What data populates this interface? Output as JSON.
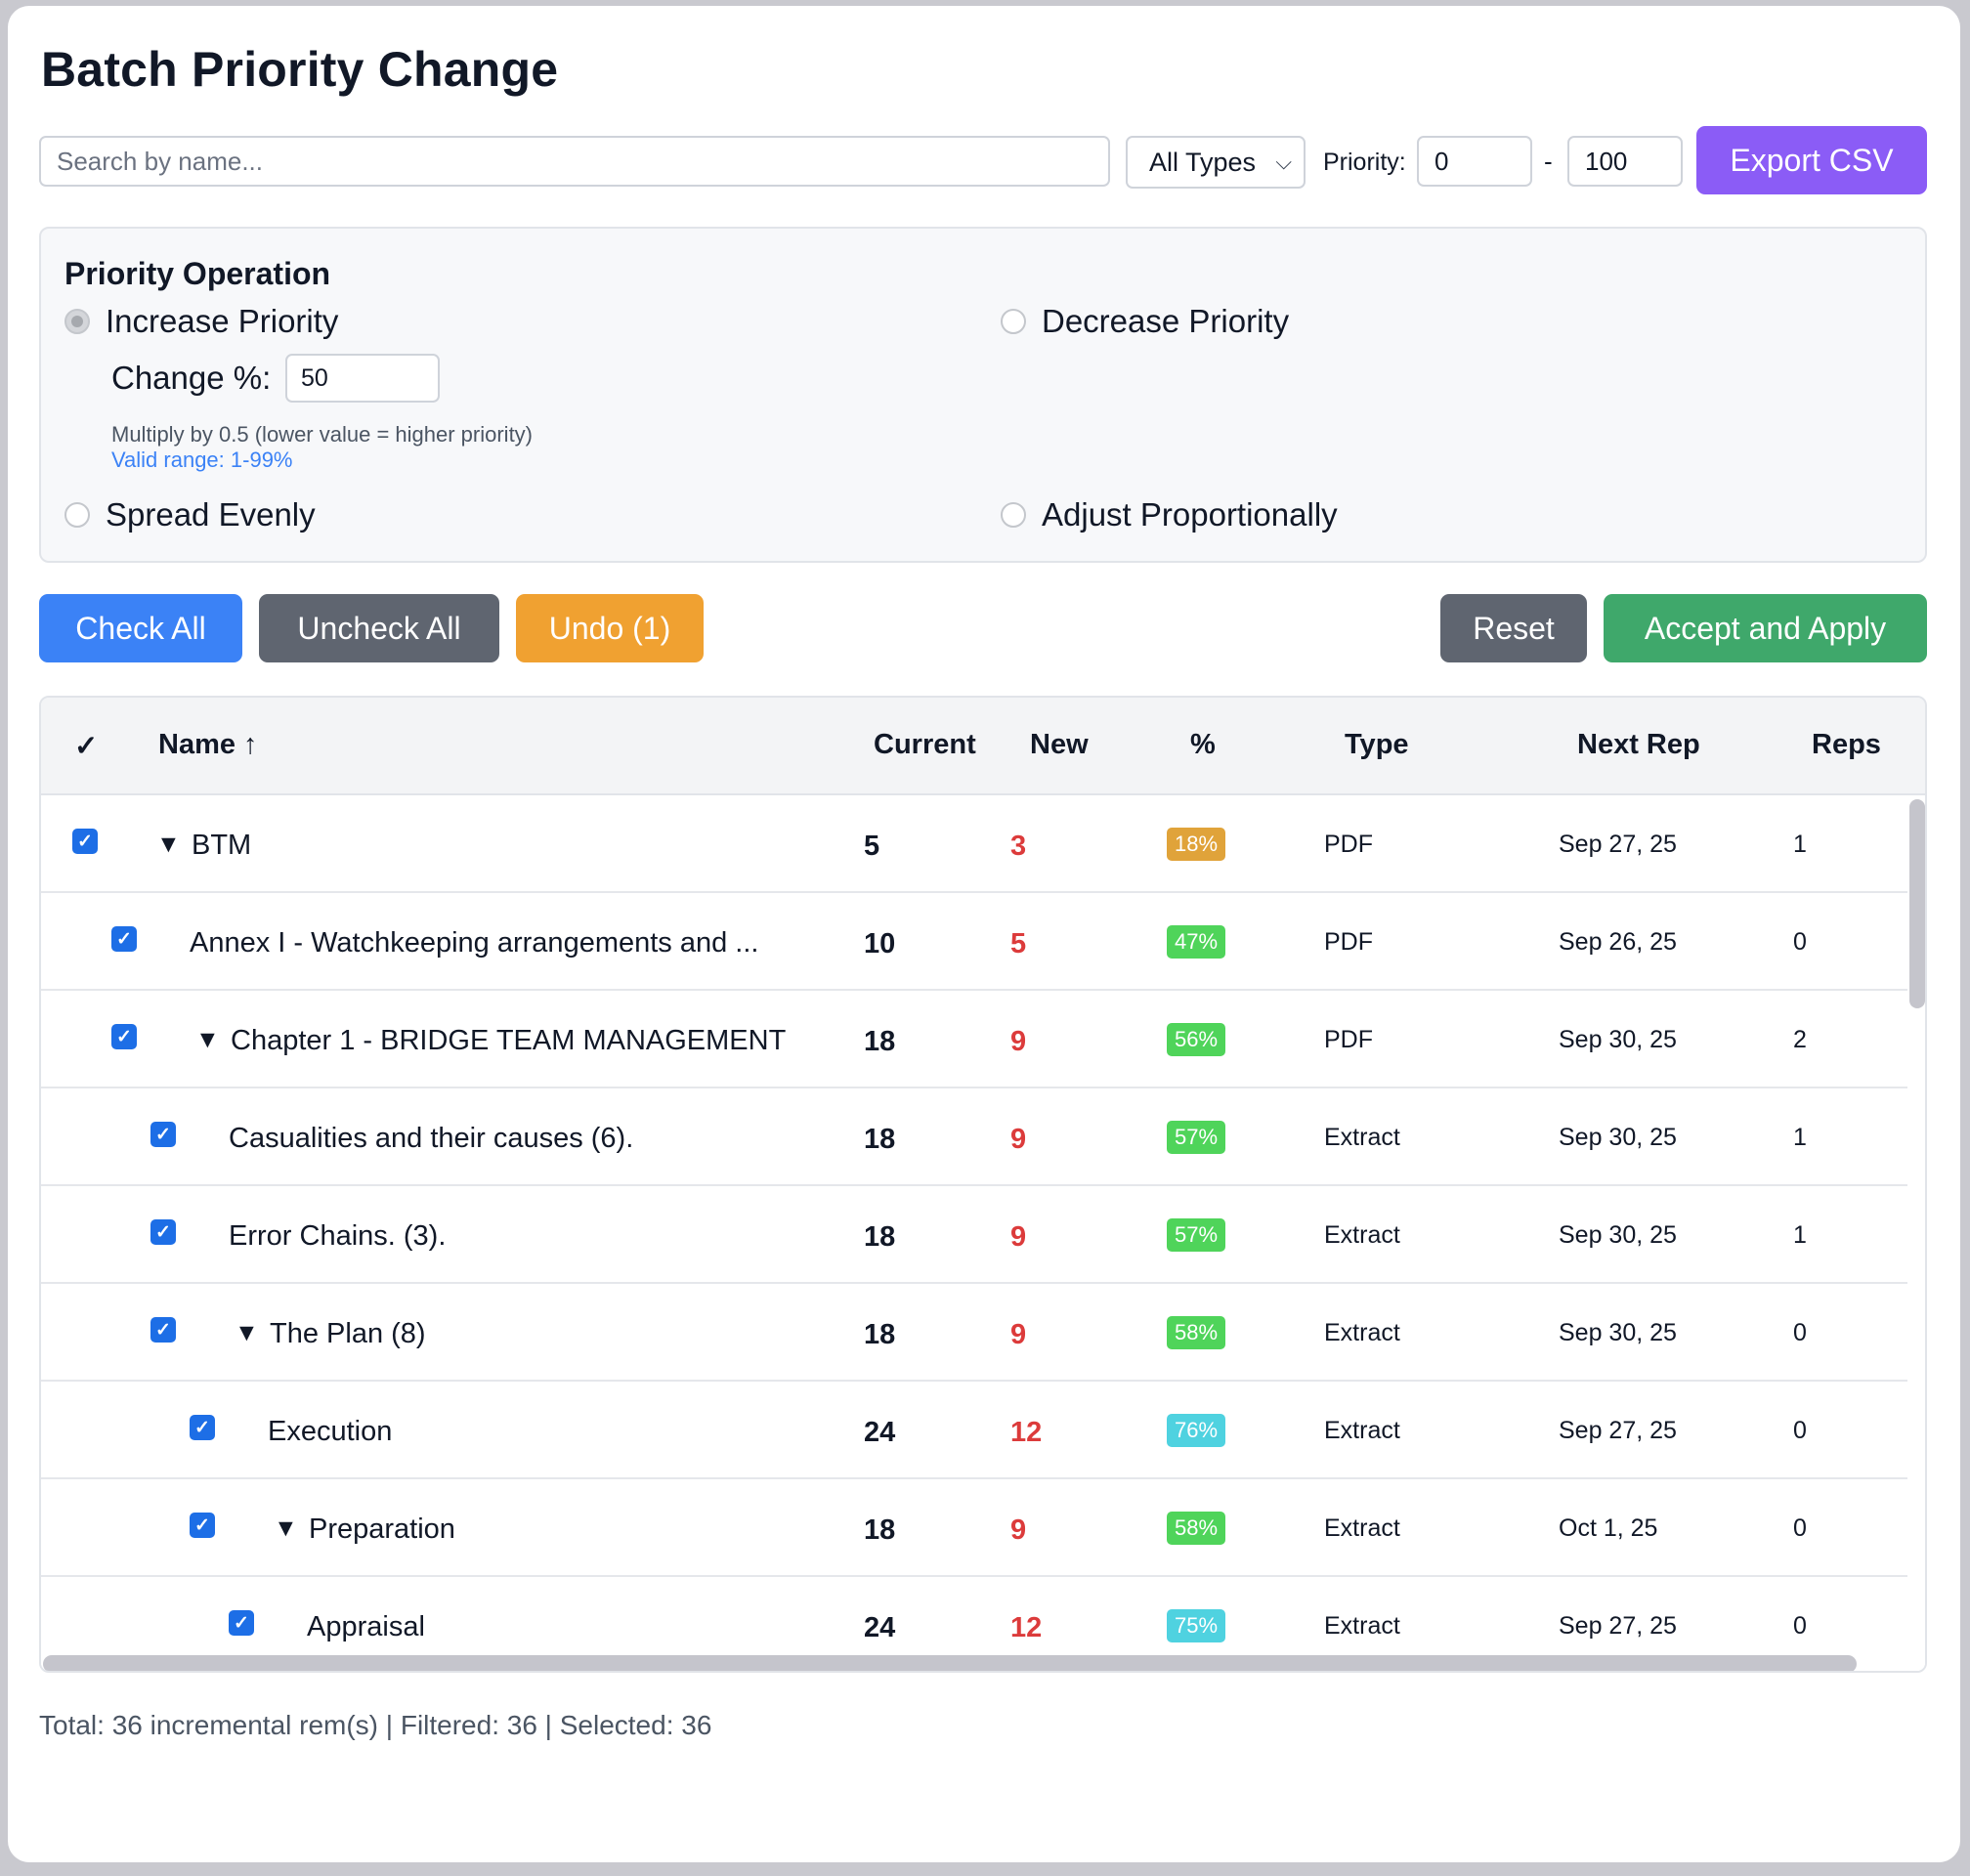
{
  "title": "Batch Priority Change",
  "toolbar": {
    "search_placeholder": "Search by name...",
    "type_filter": "All Types",
    "priority_label": "Priority:",
    "priority_min": "0",
    "priority_dash": "-",
    "priority_max": "100",
    "export_label": "Export CSV"
  },
  "operation": {
    "heading": "Priority Operation",
    "options": [
      {
        "label": "Increase Priority",
        "selected": true
      },
      {
        "label": "Decrease Priority",
        "selected": false
      },
      {
        "label": "Spread Evenly",
        "selected": false
      },
      {
        "label": "Adjust Proportionally",
        "selected": false
      }
    ],
    "change_label": "Change %:",
    "change_value": "50",
    "hint": "Multiply by 0.5 (lower value = higher priority)",
    "range": "Valid range: 1-99%"
  },
  "actions": {
    "check_all": "Check All",
    "uncheck_all": "Uncheck All",
    "undo": "Undo (1)",
    "reset": "Reset",
    "accept": "Accept and Apply"
  },
  "table": {
    "headers": {
      "check": "✓",
      "name": "Name ↑",
      "current": "Current",
      "new": "New",
      "pct": "%",
      "type": "Type",
      "next_rep": "Next Rep",
      "reps": "Reps"
    },
    "rows": [
      {
        "name": "BTM",
        "expandable": true,
        "depth": 0,
        "checked": true,
        "current": "5",
        "new": "3",
        "pct": "18%",
        "pct_color": "#e0a33a",
        "type": "PDF",
        "next_rep": "Sep 27, 25",
        "reps": "1"
      },
      {
        "name": "Annex I - Watchkeeping arrangements and ...",
        "expandable": false,
        "depth": 1,
        "checked": true,
        "current": "10",
        "new": "5",
        "pct": "47%",
        "pct_color": "#4fd45a",
        "type": "PDF",
        "next_rep": "Sep 26, 25",
        "reps": "0"
      },
      {
        "name": "Chapter 1 - BRIDGE TEAM MANAGEMENT",
        "expandable": true,
        "depth": 1,
        "checked": true,
        "current": "18",
        "new": "9",
        "pct": "56%",
        "pct_color": "#4fd45a",
        "type": "PDF",
        "next_rep": "Sep 30, 25",
        "reps": "2"
      },
      {
        "name": "Casualities and their causes (6).",
        "expandable": false,
        "depth": 2,
        "checked": true,
        "current": "18",
        "new": "9",
        "pct": "57%",
        "pct_color": "#4fd45a",
        "type": "Extract",
        "next_rep": "Sep 30, 25",
        "reps": "1"
      },
      {
        "name": "Error Chains. (3).",
        "expandable": false,
        "depth": 2,
        "checked": true,
        "current": "18",
        "new": "9",
        "pct": "57%",
        "pct_color": "#4fd45a",
        "type": "Extract",
        "next_rep": "Sep 30, 25",
        "reps": "1"
      },
      {
        "name": "The Plan (8)",
        "expandable": true,
        "depth": 2,
        "checked": true,
        "current": "18",
        "new": "9",
        "pct": "58%",
        "pct_color": "#4fd45a",
        "type": "Extract",
        "next_rep": "Sep 30, 25",
        "reps": "0"
      },
      {
        "name": "Execution",
        "expandable": false,
        "depth": 3,
        "checked": true,
        "current": "24",
        "new": "12",
        "pct": "76%",
        "pct_color": "#4fd2e0",
        "type": "Extract",
        "next_rep": "Sep 27, 25",
        "reps": "0"
      },
      {
        "name": "Preparation",
        "expandable": true,
        "depth": 3,
        "checked": true,
        "current": "18",
        "new": "9",
        "pct": "58%",
        "pct_color": "#4fd45a",
        "type": "Extract",
        "next_rep": "Oct 1, 25",
        "reps": "0"
      },
      {
        "name": "Appraisal",
        "expandable": false,
        "depth": 4,
        "checked": true,
        "current": "24",
        "new": "12",
        "pct": "75%",
        "pct_color": "#4fd2e0",
        "type": "Extract",
        "next_rep": "Sep 27, 25",
        "reps": "0"
      }
    ]
  },
  "footer": "Total: 36 incremental rem(s) | Filtered: 36 | Selected: 36",
  "colors": {
    "export": "#8b5cf6",
    "check_all": "#3b82f6",
    "uncheck_all": "#5f6570",
    "undo": "#f0a131",
    "reset": "#5f6570",
    "accept": "#3fa86b",
    "new_value": "#dc3b3b",
    "checkbox": "#1d6ee6"
  }
}
